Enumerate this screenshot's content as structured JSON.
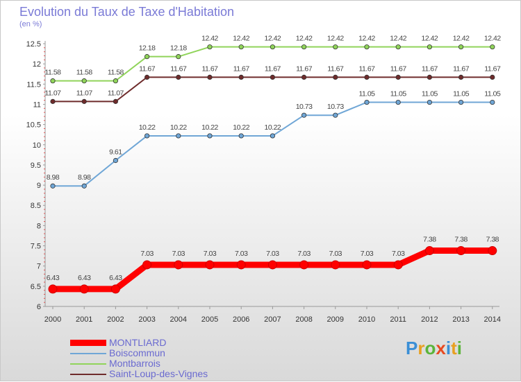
{
  "chart_data": {
    "type": "line",
    "title": "Evolution du Taux de Taxe d'Habitation",
    "unit_label": "(en %)",
    "xlabel": "",
    "ylabel": "(en %)",
    "ylim": [
      6,
      12.5
    ],
    "ytick_step": 0.5,
    "grid": false,
    "legend_position": "bottom-left",
    "categories": [
      "2000",
      "2001",
      "2002",
      "2003",
      "2004",
      "2005",
      "2006",
      "2007",
      "2008",
      "2009",
      "2010",
      "2011",
      "2012",
      "2013",
      "2014"
    ],
    "series": [
      {
        "name": "Montbarrois",
        "color": "#90d45a",
        "width": 2,
        "values": [
          11.58,
          11.58,
          11.58,
          12.18,
          12.18,
          12.42,
          12.42,
          12.42,
          12.42,
          12.42,
          12.42,
          12.42,
          12.42,
          12.42,
          12.42
        ]
      },
      {
        "name": "Saint-Loup-des-Vignes",
        "color": "#6e2b2b",
        "width": 2,
        "values": [
          11.07,
          11.07,
          11.07,
          11.67,
          11.67,
          11.67,
          11.67,
          11.67,
          11.67,
          11.67,
          11.67,
          11.67,
          11.67,
          11.67,
          11.67
        ]
      },
      {
        "name": "Boiscommun",
        "color": "#6fa6d6",
        "width": 2,
        "values": [
          8.98,
          8.98,
          9.61,
          10.22,
          10.22,
          10.22,
          10.22,
          10.22,
          10.73,
          10.73,
          11.05,
          11.05,
          11.05,
          11.05,
          11.05
        ]
      },
      {
        "name": "MONTLIARD",
        "color": "#ff0000",
        "width": 9,
        "values": [
          6.43,
          6.43,
          6.43,
          7.03,
          7.03,
          7.03,
          7.03,
          7.03,
          7.03,
          7.03,
          7.03,
          7.03,
          7.38,
          7.38,
          7.38
        ]
      }
    ],
    "legend_order": [
      "MONTLIARD",
      "Boiscommun",
      "Montbarrois",
      "Saint-Loup-des-Vignes"
    ]
  },
  "legend_colors": {
    "MONTLIARD": "#ff0000",
    "Boiscommun": "#6fa6d6",
    "Montbarrois": "#90d45a",
    "Saint-Loup-des-Vignes": "#6e2b2b"
  },
  "logo": {
    "text": "Proxiti",
    "letters": [
      {
        "ch": "P",
        "color": "#3a8fd6"
      },
      {
        "ch": "r",
        "color": "#e8a020"
      },
      {
        "ch": "o",
        "color": "#5bb43a"
      },
      {
        "ch": "x",
        "color": "#e84a20"
      },
      {
        "ch": "i",
        "color": "#3a8fd6"
      },
      {
        "ch": "t",
        "color": "#e8a020"
      },
      {
        "ch": "i",
        "color": "#5bb43a"
      }
    ]
  }
}
